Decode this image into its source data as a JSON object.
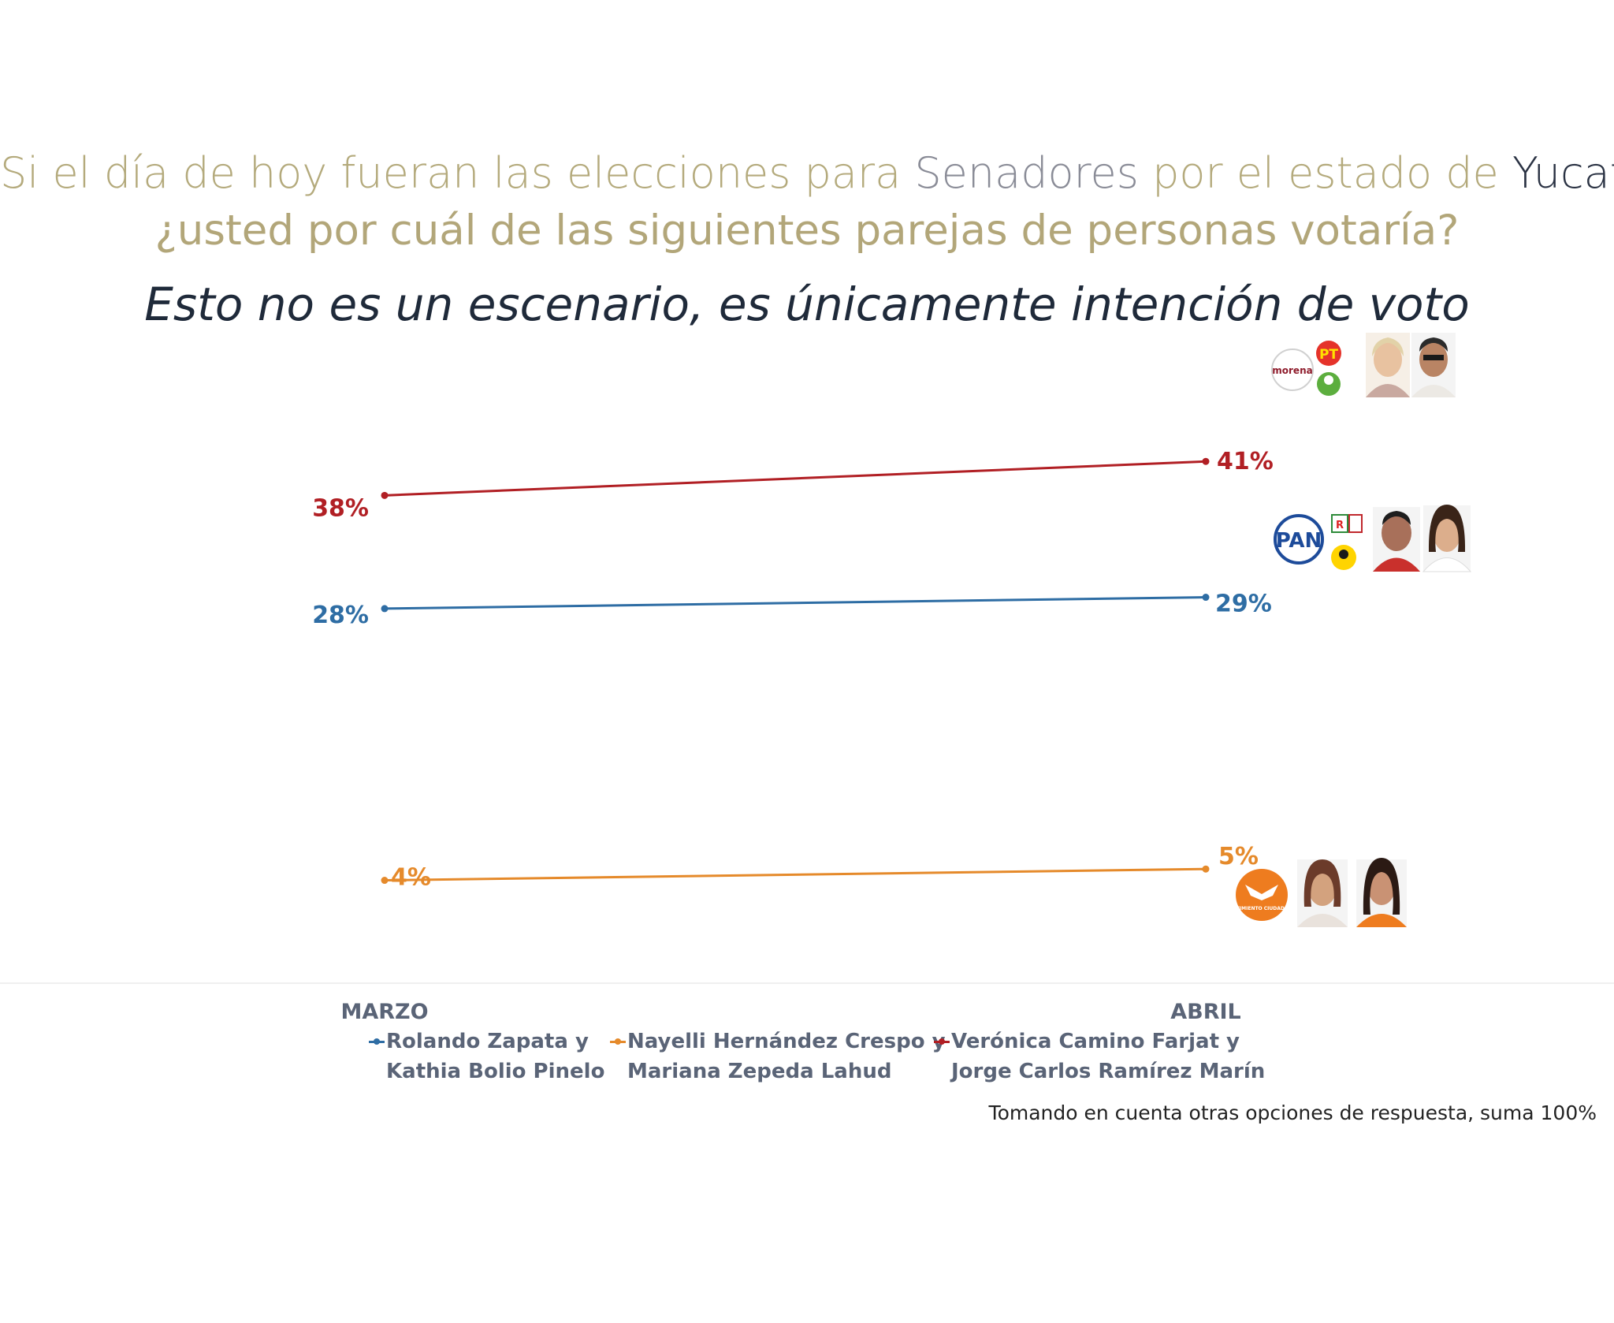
{
  "title": {
    "line1_part1": "Si el día de hoy fueran las elecciones para ",
    "line1_part2": "Senadores",
    "line1_part3": " por el estado de ",
    "line1_part4": "Yucatán",
    "line1_part5": ",",
    "line2": "¿usted por cuál de las siguientes parejas de personas votaría?"
  },
  "subtitle": "Esto no es un escenario, es únicamente intención de voto",
  "chart_data": {
    "type": "line",
    "categories": [
      "MARZO",
      "ABRIL"
    ],
    "series": [
      {
        "name": "Rolando Zapata y Kathia Bolio Pinelo",
        "name_line1": "Rolando Zapata y",
        "name_line2": "Kathia Bolio Pinelo",
        "values": [
          28,
          29
        ],
        "labels": [
          "28%",
          "29%"
        ],
        "color": "#2e6da4"
      },
      {
        "name": "Nayelli Hernández Crespo y Mariana Zepeda Lahud",
        "name_line1": "Nayelli Hernández Crespo y",
        "name_line2": "Mariana Zepeda Lahud",
        "values": [
          4,
          5
        ],
        "labels": [
          "4%",
          "5%"
        ],
        "color": "#e58a2b"
      },
      {
        "name": "Verónica Camino Farjat y Jorge Carlos Ramírez Marín",
        "name_line1": "Verónica Camino Farjat y",
        "name_line2": "Jorge Carlos Ramírez Marín",
        "values": [
          38,
          41
        ],
        "labels": [
          "38%",
          "41%"
        ],
        "color": "#b11f24"
      }
    ],
    "legend_position": "bottom",
    "grid": false
  },
  "logos": {
    "morena": "morena",
    "pt": "PT",
    "pan": "PAN",
    "prd": "PRD",
    "pri": "PRI",
    "pvem": "PVEM",
    "mc": "MOVIMIENTO CIUDADANO"
  },
  "icons": [
    "morena-logo-icon",
    "pt-logo-icon",
    "pvem-logo-icon",
    "pan-logo-icon",
    "pri-logo-icon",
    "prd-logo-icon",
    "mc-logo-icon",
    "candidate-photo-icon"
  ],
  "footnote": "Tomando en cuenta otras opciones de respuesta, suma 100%"
}
